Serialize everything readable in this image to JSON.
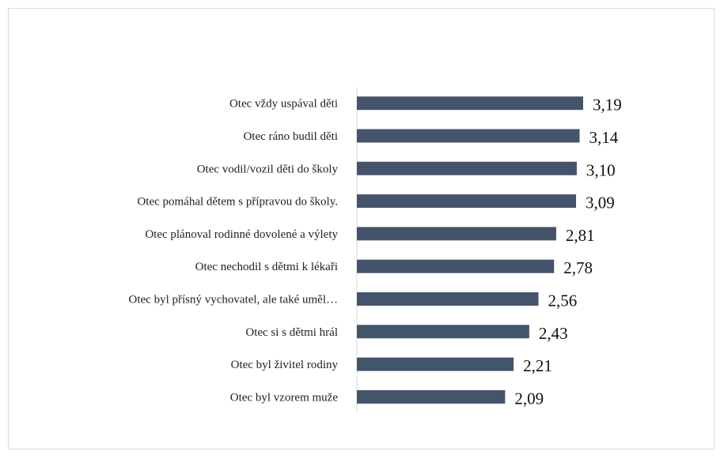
{
  "chart_data": {
    "type": "bar",
    "orientation": "horizontal",
    "categories": [
      "Otec vždy uspával děti",
      "Otec ráno budil děti",
      "Otec vodil/vozil děti do školy",
      "Otec pomáhal dětem s přípravou do školy.",
      "Otec plánoval rodinné dovolené a výlety",
      "Otec nechodil s dětmi k lékaři",
      "Otec byl přísný vychovatel, ale také uměl…",
      "Otec si s dětmi hrál",
      "Otec byl živitel rodiny",
      "Otec byl vzorem muže"
    ],
    "values": [
      3.19,
      3.14,
      3.1,
      3.09,
      2.81,
      2.78,
      2.56,
      2.43,
      2.21,
      2.09
    ],
    "value_labels": [
      "3,19",
      "3,14",
      "3,10",
      "3,09",
      "2,81",
      "2,78",
      "2,56",
      "2,43",
      "2,21",
      "2,09"
    ],
    "xlim": [
      0,
      3.5
    ],
    "grid": false,
    "bar_color": "#44546a",
    "axis_color": "#d9d9d9"
  }
}
